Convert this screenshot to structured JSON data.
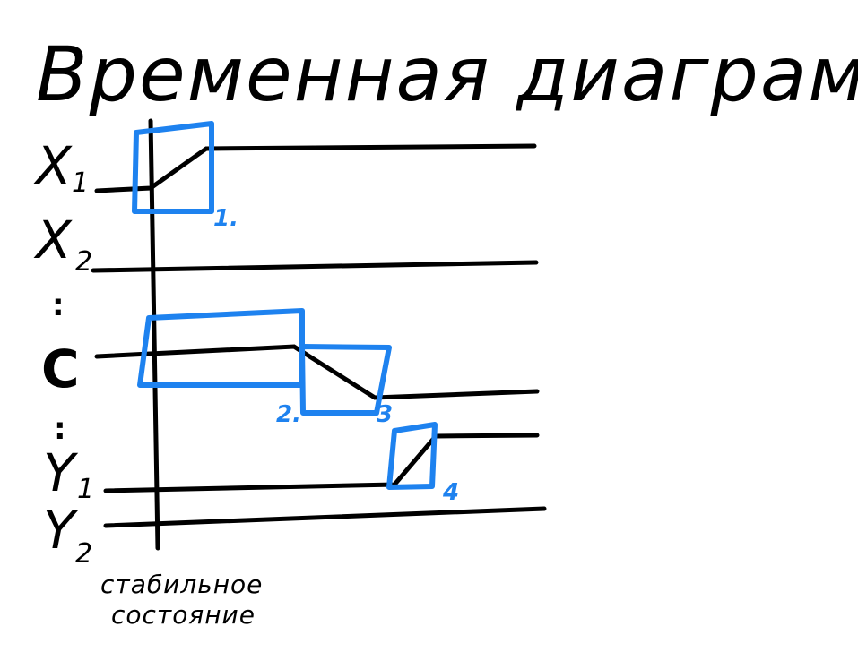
{
  "title": "Временная диаграмма",
  "signals": [
    {
      "id": "x1",
      "main": "X",
      "sub": "1"
    },
    {
      "id": "x2",
      "main": "X",
      "sub": "2"
    },
    {
      "id": "c",
      "main": "C",
      "sub": ""
    },
    {
      "id": "y1",
      "main": "Y",
      "sub": "1"
    },
    {
      "id": "y2",
      "main": "Y",
      "sub": "2"
    }
  ],
  "ellipsis": ":",
  "axis_note": {
    "line1": "стабильное",
    "line2": "состояние"
  },
  "boxes": [
    {
      "number": "1."
    },
    {
      "number": "2."
    },
    {
      "number": "3"
    },
    {
      "number": "4"
    }
  ],
  "colors": {
    "ink": "#000000",
    "highlight": "#1e82ef",
    "background": "#ffffff"
  }
}
